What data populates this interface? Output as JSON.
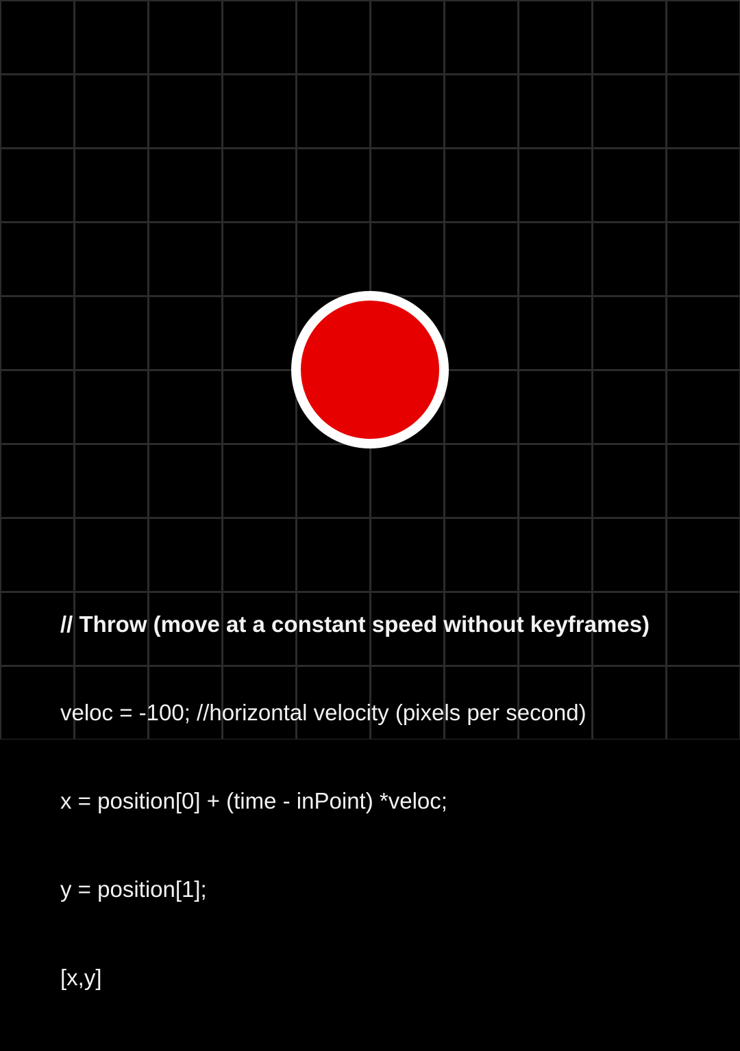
{
  "ball": {
    "fill_color": "#e60000",
    "stroke_color": "#ffffff"
  },
  "grid": {
    "background_color": "#000000",
    "line_color": "#2b2b2b"
  },
  "code": {
    "heading": "// Throw (move at a constant speed without keyframes)",
    "lines": [
      "veloc = -100; //horizontal velocity (pixels per second)",
      "x = position[0] + (time - inPoint) *veloc;",
      "y = position[1];",
      "[x,y]"
    ]
  }
}
